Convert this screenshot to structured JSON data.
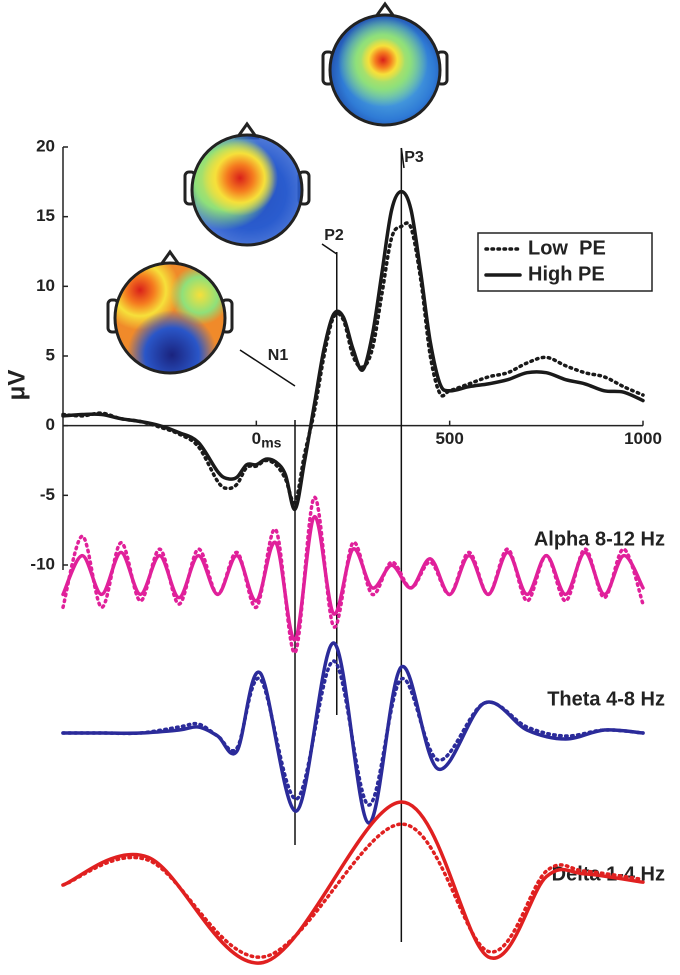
{
  "chart_data": [
    {
      "type": "line",
      "xlabel": "ms",
      "ylabel": "μV",
      "x": [
        -500,
        -450,
        -400,
        -350,
        -300,
        -250,
        -200,
        -150,
        -100,
        -75,
        -50,
        -25,
        0,
        25,
        50,
        75,
        100,
        125,
        150,
        175,
        200,
        225,
        250,
        275,
        300,
        325,
        350,
        375,
        400,
        425,
        450,
        475,
        500,
        550,
        600,
        650,
        700,
        750,
        800,
        850,
        900,
        950,
        1000
      ],
      "series": [
        {
          "name": "Low  PE",
          "color": "#1a1a1a",
          "dash": "dotted",
          "values": [
            0.8,
            0.7,
            0.9,
            0.5,
            0.3,
            -0.1,
            -0.6,
            -1.5,
            -4.0,
            -4.5,
            -4.2,
            -3.0,
            -2.9,
            -2.5,
            -2.8,
            -3.8,
            -5.5,
            -2.0,
            1.0,
            5.0,
            7.8,
            7.6,
            5.0,
            4.2,
            5.5,
            9.5,
            13.5,
            14.3,
            14.2,
            10.5,
            5,
            2.3,
            2.5,
            3.0,
            3.5,
            3.8,
            4.5,
            4.9,
            4.3,
            3.8,
            3.5,
            2.8,
            2.2
          ]
        },
        {
          "name": "High PE",
          "color": "#1a1a1a",
          "dash": "solid",
          "values": [
            0.7,
            0.8,
            0.8,
            0.5,
            0.3,
            0,
            -0.5,
            -1.2,
            -3.3,
            -3.8,
            -3.7,
            -2.8,
            -2.8,
            -2.4,
            -2.6,
            -3.5,
            -6.0,
            -2.5,
            1.5,
            5.5,
            8.0,
            7.8,
            5.5,
            4.0,
            6.5,
            11,
            15.5,
            16.8,
            15.5,
            11,
            6,
            3,
            2.5,
            2.8,
            3.0,
            3.3,
            3.8,
            3.8,
            3.3,
            3.0,
            2.5,
            2.4,
            1.8
          ]
        }
      ],
      "xlim": [
        -500,
        1000
      ],
      "xticks": [
        0,
        500,
        1000
      ],
      "ylim": [
        -10,
        20
      ],
      "yticks": [
        20,
        15,
        10,
        5,
        0,
        -5,
        -10
      ],
      "legend": "upper right",
      "annotations": [
        {
          "text": "N1",
          "x": 100
        },
        {
          "text": "P2",
          "x": 208
        },
        {
          "text": "P3",
          "x": 375
        }
      ]
    },
    {
      "type": "line",
      "title": "Alpha 8-12 Hz",
      "x": [
        -500,
        -450,
        -400,
        -350,
        -300,
        -250,
        -200,
        -150,
        -100,
        -50,
        0,
        50,
        100,
        150,
        200,
        250,
        300,
        350,
        400,
        450,
        500,
        550,
        600,
        650,
        700,
        750,
        800,
        850,
        900,
        950,
        1000
      ],
      "series": [
        {
          "name": "Low  PE",
          "color": "#e0209a",
          "dash": "dotted",
          "values": [
            -0.5,
            0.6,
            -0.5,
            0.5,
            -0.4,
            0.4,
            -0.45,
            0.4,
            -0.3,
            0.35,
            -0.5,
            0.7,
            -1.2,
            1.2,
            -0.8,
            0.5,
            -0.3,
            0.2,
            -0.2,
            0.2,
            -0.3,
            0.35,
            -0.3,
            0.4,
            -0.4,
            0.3,
            -0.4,
            0.4,
            -0.35,
            0.4,
            -0.45
          ]
        },
        {
          "name": "High PE",
          "color": "#e0209a",
          "dash": "solid",
          "values": [
            -0.3,
            0.3,
            -0.3,
            0.35,
            -0.3,
            0.3,
            -0.35,
            0.3,
            -0.3,
            0.3,
            -0.4,
            0.5,
            -1.0,
            0.9,
            -0.6,
            0.4,
            -0.2,
            0.15,
            -0.2,
            0.25,
            -0.3,
            0.3,
            -0.3,
            0.35,
            -0.3,
            0.3,
            -0.3,
            0.35,
            -0.3,
            0.3,
            -0.2
          ]
        }
      ],
      "xlim": [
        -500,
        1000
      ],
      "ylim": [
        -1.5,
        1.5
      ]
    },
    {
      "type": "line",
      "title": "Theta 4-8 Hz",
      "x": [
        -500,
        -400,
        -300,
        -200,
        -150,
        -100,
        -50,
        10,
        104,
        200,
        290,
        375,
        470,
        590,
        700,
        800,
        900,
        1000
      ],
      "series": [
        {
          "name": "Low  PE",
          "color": "#2b2b9a",
          "dash": "dotted",
          "values": [
            0,
            0,
            0,
            0.1,
            0.15,
            -0.05,
            -0.25,
            0.9,
            -1.1,
            1.2,
            -1.2,
            0.9,
            -0.45,
            0.5,
            0.1,
            -0.05,
            0.05,
            0
          ]
        },
        {
          "name": "High PE",
          "color": "#2b2b9a",
          "dash": "solid",
          "values": [
            0,
            0,
            0,
            0.05,
            0.1,
            -0.05,
            -0.3,
            1.0,
            -1.3,
            1.5,
            -1.5,
            1.1,
            -0.6,
            0.5,
            0.05,
            -0.1,
            0.05,
            0
          ]
        }
      ],
      "xlim": [
        -500,
        1000
      ],
      "ylim": [
        -1.5,
        1.5
      ]
    },
    {
      "type": "line",
      "title": "Delta 1-4 Hz",
      "x": [
        -500,
        -280,
        18,
        375,
        600,
        750,
        850,
        1000
      ],
      "series": [
        {
          "name": "Low  PE",
          "color": "#e02020",
          "dash": "dotted",
          "values": [
            0,
            0.45,
            -1.3,
            1.1,
            -1.2,
            0.25,
            0.25,
            0.1
          ]
        },
        {
          "name": "High PE",
          "color": "#e02020",
          "dash": "solid",
          "values": [
            0,
            0.5,
            -1.4,
            1.5,
            -1.3,
            0.15,
            0.2,
            0.05
          ]
        }
      ],
      "xlim": [
        -500,
        1000
      ],
      "ylim": [
        -1.5,
        1.5
      ]
    }
  ]
}
